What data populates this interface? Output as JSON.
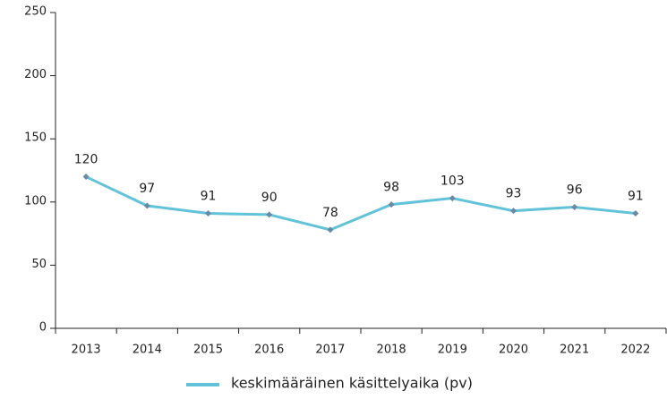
{
  "chart_data": {
    "type": "line",
    "categories": [
      "2013",
      "2014",
      "2015",
      "2016",
      "2017",
      "2018",
      "2019",
      "2020",
      "2021",
      "2022"
    ],
    "series": [
      {
        "name": "keskimääräinen käsittelyaika (pv)",
        "color": "#62c3d8",
        "marker_color": "#6a8aa3",
        "values": [
          120,
          97,
          91,
          90,
          78,
          98,
          103,
          93,
          96,
          91
        ]
      }
    ],
    "ylim": [
      0,
      250
    ],
    "yticks": [
      0,
      50,
      100,
      150,
      200,
      250
    ],
    "data_labels": true,
    "legend": "bottom"
  }
}
